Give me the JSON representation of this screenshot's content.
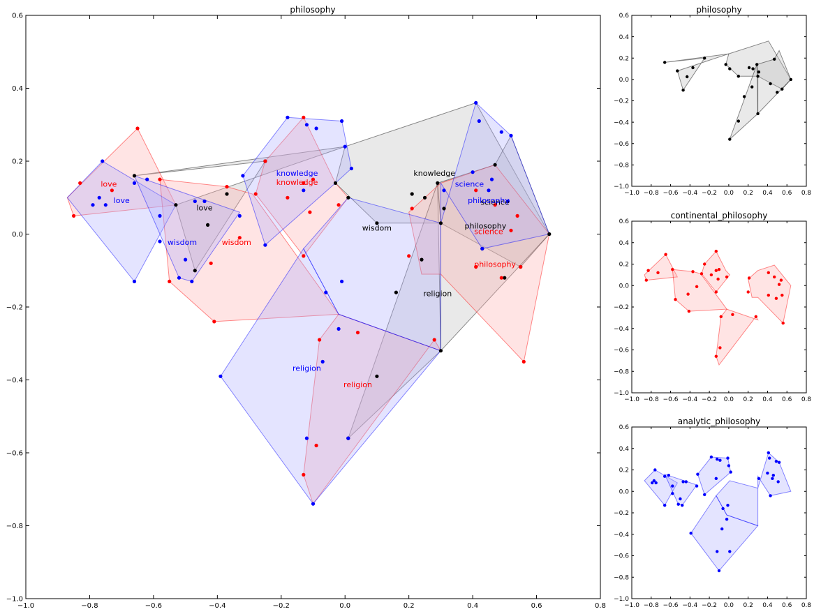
{
  "chart_data": [
    {
      "id": "main",
      "type": "scatter",
      "title": "philosophy",
      "xlim": [
        -1.0,
        0.8
      ],
      "ylim": [
        -1.0,
        0.6
      ],
      "xticks": [
        -1.0,
        -0.8,
        -0.6,
        -0.4,
        -0.2,
        0.0,
        0.2,
        0.4,
        0.6,
        0.8
      ],
      "xticklabels": [
        "−1.0",
        "−0.8",
        "−0.6",
        "−0.4",
        "−0.2",
        "0.0",
        "0.2",
        "0.4",
        "0.6",
        "0.8"
      ],
      "yticks": [
        -1.0,
        -0.8,
        -0.6,
        -0.4,
        -0.2,
        0.0,
        0.2,
        0.4,
        0.6
      ],
      "yticklabels": [
        "−1.0",
        "−0.8",
        "−0.6",
        "−0.4",
        "−0.2",
        "0.0",
        "0.2",
        "0.4",
        "0.6"
      ],
      "series": [
        {
          "key": "black",
          "color": "#000000",
          "fill": "#bbbbbb",
          "points": [
            [
              -0.25,
              0.2
            ],
            [
              -0.37,
              0.11
            ],
            [
              -0.43,
              0.025
            ],
            [
              -0.47,
              -0.1
            ],
            [
              -0.03,
              0.14
            ],
            [
              0.01,
              0.1
            ],
            [
              0.1,
              0.03
            ],
            [
              0.16,
              -0.16
            ],
            [
              0.21,
              0.11
            ],
            [
              0.24,
              -0.07
            ],
            [
              0.25,
              0.1
            ],
            [
              0.29,
              0.14
            ],
            [
              0.3,
              0.03
            ],
            [
              0.31,
              0.07
            ],
            [
              0.3,
              -0.32
            ],
            [
              0.43,
              -0.04
            ],
            [
              0.47,
              0.19
            ],
            [
              0.5,
              -0.12
            ],
            [
              0.55,
              -0.09
            ],
            [
              0.64,
              0.0
            ],
            [
              0.1,
              -0.39
            ],
            [
              0.01,
              -0.56
            ],
            [
              -0.66,
              0.16
            ],
            [
              -0.53,
              0.08
            ]
          ],
          "hulls": [
            [
              [
                -0.66,
                0.16
              ],
              [
                0.0,
                0.24
              ],
              [
                -0.53,
                0.08
              ],
              [
                -0.47,
                -0.1
              ],
              [
                -0.25,
                0.2
              ]
            ],
            [
              [
                0.0,
                0.24
              ],
              [
                0.41,
                0.36
              ],
              [
                0.64,
                0.0
              ],
              [
                0.55,
                -0.09
              ],
              [
                0.3,
                0.03
              ],
              [
                0.1,
                0.03
              ],
              [
                -0.03,
                0.14
              ]
            ],
            [
              [
                0.29,
                0.14
              ],
              [
                0.47,
                0.19
              ],
              [
                0.52,
                0.27
              ],
              [
                0.64,
                0.0
              ],
              [
                0.3,
                -0.32
              ],
              [
                0.3,
                0.03
              ]
            ],
            [
              [
                0.29,
                0.14
              ],
              [
                0.3,
                -0.32
              ],
              [
                0.01,
                -0.56
              ]
            ]
          ],
          "labels": [
            {
              "text": "love",
              "x": -0.44,
              "y": 0.065
            },
            {
              "text": "knowledge",
              "x": 0.28,
              "y": 0.16
            },
            {
              "text": "science",
              "x": 0.47,
              "y": 0.08
            },
            {
              "text": "wisdom",
              "x": 0.1,
              "y": 0.01
            },
            {
              "text": "philosophy",
              "x": 0.44,
              "y": 0.015
            },
            {
              "text": "religion",
              "x": 0.29,
              "y": -0.17
            }
          ]
        },
        {
          "key": "red",
          "color": "#ff0000",
          "fill": "#ffaaaa",
          "points": [
            [
              -0.65,
              0.29
            ],
            [
              -0.83,
              0.14
            ],
            [
              -0.85,
              0.05
            ],
            [
              -0.73,
              0.12
            ],
            [
              -0.58,
              0.15
            ],
            [
              -0.55,
              -0.13
            ],
            [
              -0.41,
              -0.24
            ],
            [
              -0.37,
              0.13
            ],
            [
              -0.33,
              -0.01
            ],
            [
              -0.28,
              0.11
            ],
            [
              -0.25,
              0.2
            ],
            [
              -0.13,
              0.32
            ],
            [
              -0.18,
              0.1
            ],
            [
              -0.1,
              0.15
            ],
            [
              -0.13,
              0.14
            ],
            [
              -0.11,
              0.06
            ],
            [
              -0.13,
              -0.06
            ],
            [
              -0.02,
              0.08
            ],
            [
              0.2,
              -0.06
            ],
            [
              0.21,
              0.07
            ],
            [
              0.41,
              0.12
            ],
            [
              0.47,
              0.08
            ],
            [
              0.52,
              0.01
            ],
            [
              0.55,
              -0.09
            ],
            [
              0.56,
              -0.35
            ],
            [
              -0.08,
              -0.29
            ],
            [
              0.04,
              -0.27
            ],
            [
              0.28,
              -0.29
            ],
            [
              -0.09,
              -0.58
            ],
            [
              -0.13,
              -0.66
            ],
            [
              -0.42,
              -0.08
            ],
            [
              0.49,
              -0.12
            ],
            [
              0.41,
              -0.09
            ],
            [
              0.54,
              0.05
            ]
          ],
          "hulls": [
            [
              [
                -0.65,
                0.29
              ],
              [
                -0.53,
                0.08
              ],
              [
                -0.85,
                0.05
              ],
              [
                -0.87,
                0.1
              ]
            ],
            [
              [
                -0.58,
                0.15
              ],
              [
                -0.37,
                0.13
              ],
              [
                -0.29,
                0.11
              ],
              [
                -0.02,
                -0.22
              ],
              [
                -0.41,
                -0.24
              ],
              [
                -0.55,
                -0.13
              ]
            ],
            [
              [
                -0.25,
                0.2
              ],
              [
                -0.13,
                0.32
              ],
              [
                -0.03,
                0.14
              ],
              [
                0.01,
                0.1
              ],
              [
                -0.13,
                -0.06
              ],
              [
                -0.28,
                0.11
              ]
            ],
            [
              [
                0.2,
                0.06
              ],
              [
                0.3,
                0.14
              ],
              [
                0.47,
                0.19
              ],
              [
                0.64,
                0.0
              ],
              [
                0.56,
                -0.35
              ],
              [
                0.3,
                -0.11
              ],
              [
                0.24,
                -0.11
              ]
            ],
            [
              [
                -0.02,
                -0.22
              ],
              [
                0.3,
                -0.32
              ],
              [
                0.28,
                -0.29
              ],
              [
                -0.1,
                -0.74
              ],
              [
                -0.13,
                -0.66
              ],
              [
                -0.08,
                -0.29
              ]
            ]
          ],
          "labels": [
            {
              "text": "love",
              "x": -0.74,
              "y": 0.13
            },
            {
              "text": "knowledge",
              "x": -0.15,
              "y": 0.135
            },
            {
              "text": "wisdom",
              "x": -0.34,
              "y": -0.03
            },
            {
              "text": "science",
              "x": 0.45,
              "y": 0.0
            },
            {
              "text": "philosophy",
              "x": 0.47,
              "y": -0.09
            },
            {
              "text": "religion",
              "x": 0.04,
              "y": -0.42
            }
          ]
        },
        {
          "key": "blue",
          "color": "#0000ff",
          "fill": "#aaaaff",
          "points": [
            [
              -0.76,
              0.2
            ],
            [
              -0.79,
              0.08
            ],
            [
              -0.77,
              0.1
            ],
            [
              -0.75,
              0.08
            ],
            [
              -0.66,
              0.14
            ],
            [
              -0.62,
              0.15
            ],
            [
              -0.58,
              0.05
            ],
            [
              -0.58,
              -0.02
            ],
            [
              -0.5,
              -0.07
            ],
            [
              -0.48,
              -0.13
            ],
            [
              -0.66,
              -0.13
            ],
            [
              -0.47,
              0.09
            ],
            [
              -0.44,
              0.09
            ],
            [
              -0.32,
              0.16
            ],
            [
              -0.33,
              0.05
            ],
            [
              -0.25,
              -0.03
            ],
            [
              -0.18,
              0.32
            ],
            [
              -0.12,
              0.3
            ],
            [
              -0.09,
              0.29
            ],
            [
              -0.01,
              0.31
            ],
            [
              0.0,
              0.24
            ],
            [
              0.02,
              0.18
            ],
            [
              -0.13,
              0.12
            ],
            [
              -0.06,
              -0.16
            ],
            [
              -0.01,
              -0.13
            ],
            [
              -0.02,
              -0.26
            ],
            [
              -0.07,
              -0.35
            ],
            [
              -0.39,
              -0.39
            ],
            [
              -0.12,
              -0.56
            ],
            [
              -0.1,
              -0.74
            ],
            [
              0.41,
              0.36
            ],
            [
              0.42,
              0.31
            ],
            [
              0.49,
              0.28
            ],
            [
              0.52,
              0.27
            ],
            [
              0.4,
              0.17
            ],
            [
              0.46,
              0.15
            ],
            [
              0.45,
              0.12
            ],
            [
              0.31,
              0.12
            ],
            [
              0.51,
              0.09
            ],
            [
              0.43,
              -0.04
            ],
            [
              0.01,
              -0.56
            ],
            [
              -0.52,
              -0.12
            ]
          ],
          "hulls": [
            [
              [
                -0.76,
                0.2
              ],
              [
                -0.53,
                0.08
              ],
              [
                -0.66,
                -0.13
              ],
              [
                -0.87,
                0.1
              ]
            ],
            [
              [
                -0.66,
                0.16
              ],
              [
                -0.33,
                0.06
              ],
              [
                -0.48,
                -0.13
              ],
              [
                -0.52,
                -0.12
              ]
            ],
            [
              [
                -0.32,
                0.16
              ],
              [
                -0.18,
                0.32
              ],
              [
                -0.01,
                0.31
              ],
              [
                0.02,
                0.18
              ],
              [
                -0.03,
                0.14
              ],
              [
                -0.25,
                -0.03
              ]
            ],
            [
              [
                -0.39,
                -0.39
              ],
              [
                -0.13,
                -0.04
              ],
              [
                -0.02,
                -0.22
              ],
              [
                0.3,
                -0.32
              ],
              [
                -0.1,
                -0.74
              ]
            ],
            [
              [
                0.3,
                0.03
              ],
              [
                0.41,
                0.36
              ],
              [
                0.52,
                0.27
              ],
              [
                0.64,
                0.0
              ],
              [
                0.43,
                -0.04
              ],
              [
                0.3,
                0.14
              ]
            ],
            [
              [
                -0.13,
                -0.04
              ],
              [
                0.01,
                0.1
              ],
              [
                0.3,
                0.03
              ],
              [
                0.3,
                -0.32
              ],
              [
                -0.02,
                -0.22
              ]
            ]
          ],
          "labels": [
            {
              "text": "love",
              "x": -0.7,
              "y": 0.085
            },
            {
              "text": "knowledge",
              "x": -0.15,
              "y": 0.16
            },
            {
              "text": "wisdom",
              "x": -0.51,
              "y": -0.03
            },
            {
              "text": "science",
              "x": 0.39,
              "y": 0.13
            },
            {
              "text": "philosophy",
              "x": 0.45,
              "y": 0.085
            },
            {
              "text": "religion",
              "x": -0.12,
              "y": -0.375
            }
          ]
        }
      ]
    },
    {
      "id": "small1",
      "type": "scatter",
      "title": "philosophy",
      "series_key": "black",
      "xlim": [
        -1.0,
        0.8
      ],
      "ylim": [
        -1.0,
        0.6
      ],
      "xticks": [
        -1.0,
        -0.8,
        -0.6,
        -0.4,
        -0.2,
        0.0,
        0.2,
        0.4,
        0.6,
        0.8
      ],
      "xticklabels": [
        "−1.0",
        "−0.8",
        "−0.6",
        "−0.4",
        "−0.2",
        "0.0",
        "0.2",
        "0.4",
        "0.6",
        "0.8"
      ],
      "yticks": [
        -1.0,
        -0.8,
        -0.6,
        -0.4,
        -0.2,
        0.0,
        0.2,
        0.4,
        0.6
      ],
      "yticklabels": [
        "−1.0",
        "−0.8",
        "−0.6",
        "−0.4",
        "−0.2",
        "0.0",
        "0.2",
        "0.4",
        "0.6"
      ]
    },
    {
      "id": "small2",
      "type": "scatter",
      "title": "continental_philosophy",
      "series_key": "red",
      "xlim": [
        -1.0,
        0.8
      ],
      "ylim": [
        -1.0,
        0.6
      ],
      "xticks": [
        -1.0,
        -0.8,
        -0.6,
        -0.4,
        -0.2,
        0.0,
        0.2,
        0.4,
        0.6,
        0.8
      ],
      "xticklabels": [
        "−1.0",
        "−0.8",
        "−0.6",
        "−0.4",
        "−0.2",
        "0.0",
        "0.2",
        "0.4",
        "0.6",
        "0.8"
      ],
      "yticks": [
        -1.0,
        -0.8,
        -0.6,
        -0.4,
        -0.2,
        0.0,
        0.2,
        0.4,
        0.6
      ],
      "yticklabels": [
        "−1.0",
        "−0.8",
        "−0.6",
        "−0.4",
        "−0.2",
        "0.0",
        "0.2",
        "0.4",
        "0.6"
      ]
    },
    {
      "id": "small3",
      "type": "scatter",
      "title": "analytic_philosophy",
      "series_key": "blue",
      "xlim": [
        -1.0,
        0.8
      ],
      "ylim": [
        -1.0,
        0.6
      ],
      "xticks": [
        -1.0,
        -0.8,
        -0.6,
        -0.4,
        -0.2,
        0.0,
        0.2,
        0.4,
        0.6,
        0.8
      ],
      "xticklabels": [
        "−1.0",
        "−0.8",
        "−0.6",
        "−0.4",
        "−0.2",
        "0.0",
        "0.2",
        "0.4",
        "0.6",
        "0.8"
      ],
      "yticks": [
        -1.0,
        -0.8,
        -0.6,
        -0.4,
        -0.2,
        0.0,
        0.2,
        0.4,
        0.6
      ],
      "yticklabels": [
        "−1.0",
        "−0.8",
        "−0.6",
        "−0.4",
        "−0.2",
        "0.0",
        "0.2",
        "0.4",
        "0.6"
      ]
    }
  ]
}
